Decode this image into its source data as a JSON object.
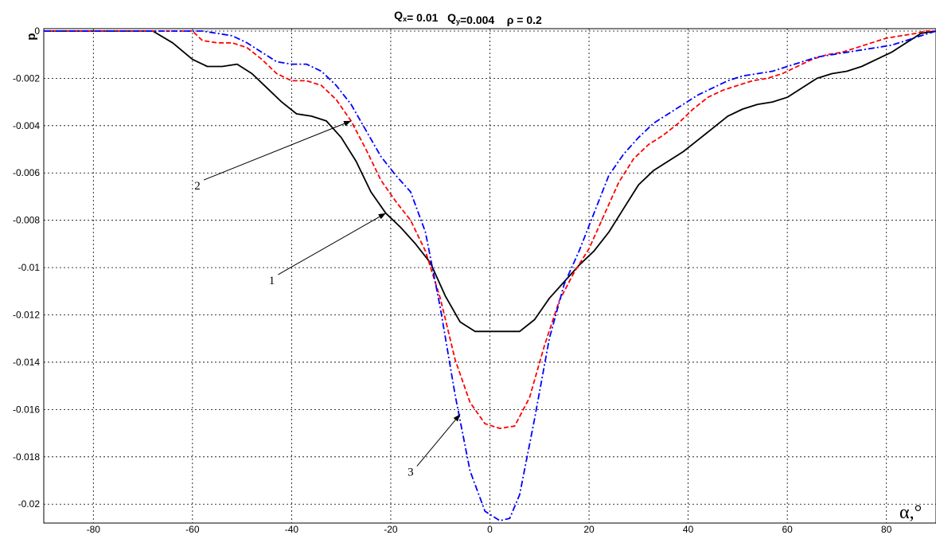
{
  "chart_data": {
    "type": "line",
    "title": {
      "parts": [
        {
          "text": "Q",
          "sub": "x"
        },
        {
          "text": "= 0.01   "
        },
        {
          "text": "Q",
          "sub": "y"
        },
        {
          "text": "=0.004    ρ = 0.2"
        }
      ]
    },
    "ylabel": "p",
    "xlabel": "α,°",
    "xlim": [
      -90,
      90
    ],
    "ylim": [
      -0.0208,
      0.0001
    ],
    "xticks": [
      -80,
      -60,
      -40,
      -20,
      0,
      20,
      40,
      60,
      80
    ],
    "xtick_labels": [
      "-80",
      "-60",
      "-40",
      "-20",
      "0",
      "20",
      "40",
      "60",
      "80"
    ],
    "yticks": [
      0,
      -0.002,
      -0.004,
      -0.006,
      -0.008,
      -0.01,
      -0.012,
      -0.014,
      -0.016,
      -0.018,
      -0.02
    ],
    "ytick_labels": [
      "0",
      "-0.002",
      "-0.004",
      "-0.006",
      "-0.008",
      "-0.01",
      "-0.012",
      "-0.014",
      "-0.016",
      "-0.018",
      "-0.02"
    ],
    "grid": true,
    "series": [
      {
        "label": "1",
        "color": "#000000",
        "style": "solid",
        "x": [
          -90,
          -68,
          -64,
          -60,
          -57,
          -54,
          -51,
          -48,
          -45,
          -42,
          -39,
          -36,
          -33,
          -30,
          -27,
          -24,
          -21,
          -18,
          -15,
          -12,
          -9,
          -6,
          -3,
          0,
          3,
          6,
          9,
          12,
          15,
          18,
          21,
          24,
          27,
          30,
          33,
          36,
          39,
          42,
          45,
          48,
          51,
          54,
          57,
          60,
          63,
          66,
          69,
          72,
          75,
          78,
          81,
          84,
          87,
          90
        ],
        "y": [
          0,
          0,
          -0.0005,
          -0.0012,
          -0.0015,
          -0.0015,
          -0.0014,
          -0.0018,
          -0.0024,
          -0.003,
          -0.0035,
          -0.0036,
          -0.0038,
          -0.0045,
          -0.0055,
          -0.0068,
          -0.0077,
          -0.0083,
          -0.009,
          -0.0098,
          -0.0112,
          -0.0123,
          -0.0127,
          -0.0127,
          -0.0127,
          -0.0127,
          -0.0122,
          -0.0113,
          -0.0106,
          -0.0099,
          -0.0093,
          -0.0085,
          -0.0075,
          -0.0065,
          -0.0059,
          -0.0055,
          -0.0051,
          -0.0046,
          -0.0041,
          -0.0036,
          -0.0033,
          -0.0031,
          -0.003,
          -0.0028,
          -0.0024,
          -0.002,
          -0.0018,
          -0.0017,
          -0.0015,
          -0.0012,
          -0.0009,
          -0.0005,
          -0.0001,
          0
        ]
      },
      {
        "label": "2",
        "color": "#ff0000",
        "style": "dashed",
        "x": [
          -90,
          -60,
          -58,
          -55,
          -52,
          -49,
          -46,
          -43,
          -40,
          -37,
          -34,
          -31,
          -28,
          -25,
          -22,
          -19,
          -16,
          -13,
          -10,
          -7,
          -4,
          -1,
          2,
          5,
          8,
          11,
          14,
          17,
          20,
          23,
          26,
          29,
          32,
          35,
          38,
          41,
          44,
          47,
          50,
          53,
          56,
          59,
          62,
          65,
          68,
          71,
          74,
          77,
          80,
          83,
          86,
          88,
          90
        ],
        "y": [
          0,
          0,
          -0.0004,
          -0.0005,
          -0.0005,
          -0.0007,
          -0.0012,
          -0.0018,
          -0.0021,
          -0.0021,
          -0.0023,
          -0.0029,
          -0.0038,
          -0.005,
          -0.0063,
          -0.0072,
          -0.008,
          -0.0093,
          -0.0113,
          -0.0139,
          -0.0157,
          -0.0166,
          -0.0168,
          -0.0167,
          -0.0155,
          -0.0133,
          -0.0114,
          -0.0102,
          -0.0092,
          -0.0078,
          -0.0064,
          -0.0054,
          -0.0048,
          -0.0044,
          -0.0039,
          -0.0033,
          -0.0028,
          -0.0025,
          -0.0023,
          -0.0021,
          -0.002,
          -0.0018,
          -0.0015,
          -0.0012,
          -0.001,
          -0.0009,
          -0.0007,
          -0.0005,
          -0.0003,
          -0.0002,
          -0.0001,
          0,
          0
        ]
      },
      {
        "label": "3",
        "color": "#0000ff",
        "style": "dashdot",
        "x": [
          -90,
          -58,
          -55,
          -52,
          -49,
          -46,
          -43,
          -40,
          -37,
          -34,
          -31,
          -28,
          -25,
          -22,
          -19,
          -16,
          -13,
          -10,
          -7,
          -4,
          -1,
          2,
          4,
          6,
          9,
          12,
          15,
          18,
          21,
          24,
          27,
          30,
          33,
          36,
          39,
          42,
          45,
          48,
          51,
          54,
          57,
          60,
          63,
          66,
          69,
          72,
          75,
          78,
          81,
          84,
          87,
          90
        ],
        "y": [
          0,
          0,
          -0.0001,
          -0.0002,
          -0.0005,
          -0.0009,
          -0.0013,
          -0.0014,
          -0.0014,
          -0.0017,
          -0.0023,
          -0.0031,
          -0.0042,
          -0.0053,
          -0.0061,
          -0.0068,
          -0.0085,
          -0.0117,
          -0.0154,
          -0.0186,
          -0.0203,
          -0.0207,
          -0.0206,
          -0.0196,
          -0.0164,
          -0.013,
          -0.0107,
          -0.0093,
          -0.0077,
          -0.0061,
          -0.0052,
          -0.0045,
          -0.0039,
          -0.0035,
          -0.0031,
          -0.0027,
          -0.0024,
          -0.0021,
          -0.0019,
          -0.0018,
          -0.0017,
          -0.0015,
          -0.0013,
          -0.0011,
          -0.001,
          -0.0009,
          -0.0008,
          -0.0007,
          -0.0006,
          -0.0004,
          -0.0002,
          0
        ]
      }
    ],
    "annotations": [
      {
        "text": "1",
        "label_at": [
          -44,
          -0.0107
        ],
        "arrow_to": [
          -21,
          -0.0077
        ]
      },
      {
        "text": "2",
        "label_at": [
          -59,
          -0.0067
        ],
        "arrow_to": [
          -28,
          -0.0038
        ]
      },
      {
        "text": "3",
        "label_at": [
          -16,
          -0.0188
        ],
        "arrow_to": [
          -6,
          -0.0162
        ]
      }
    ]
  }
}
